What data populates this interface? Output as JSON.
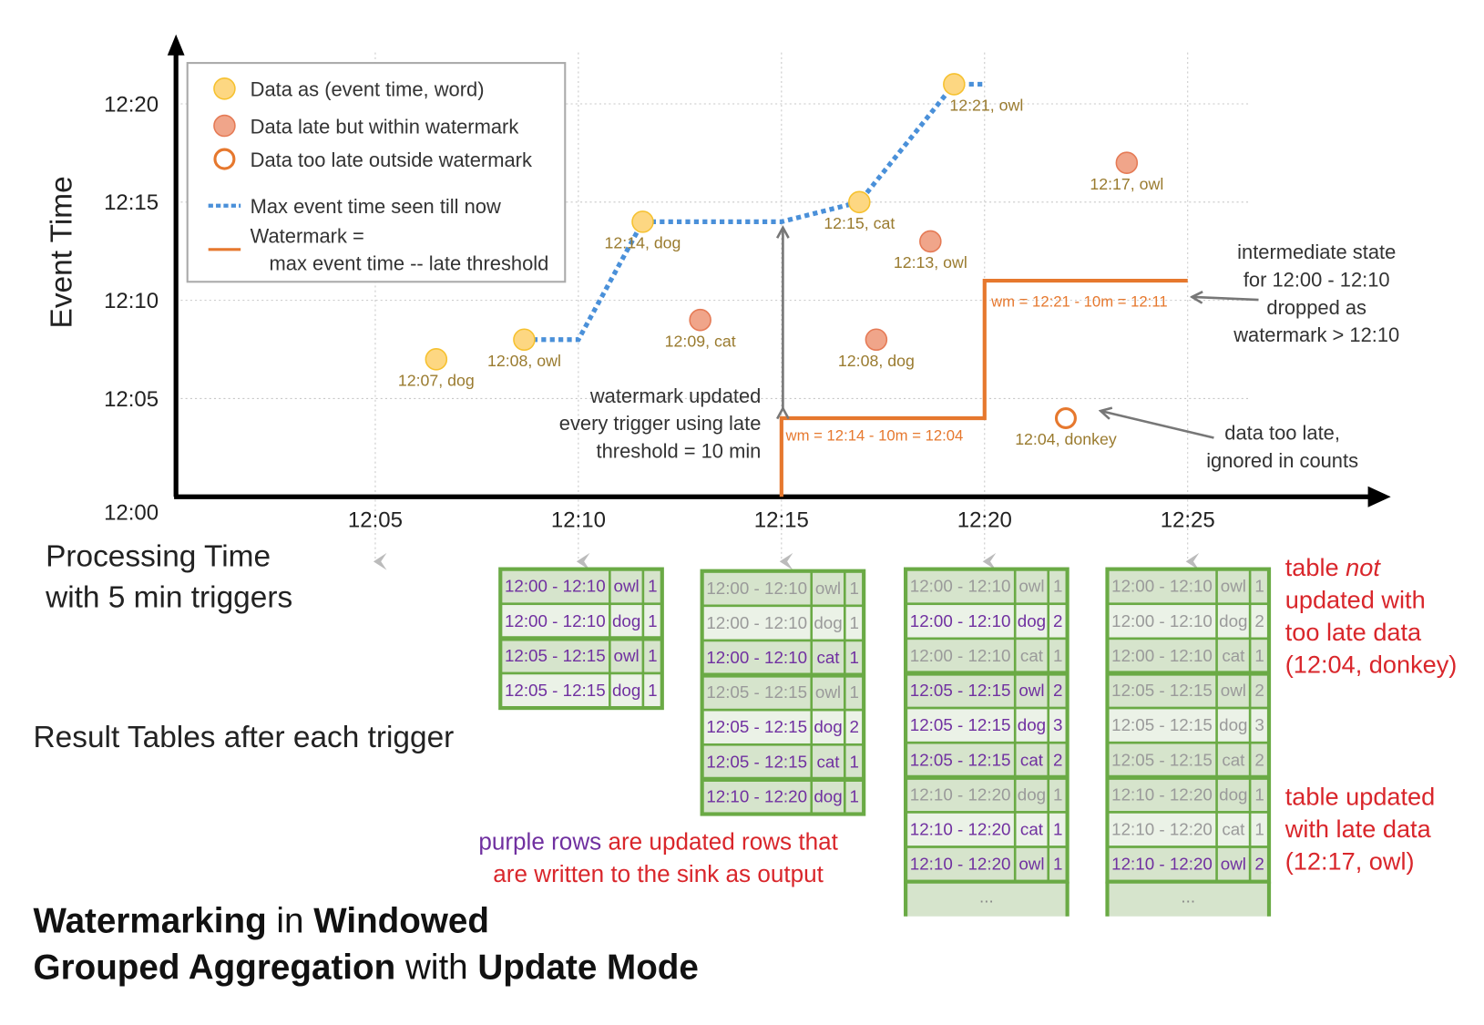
{
  "chart_data": {
    "type": "scatter",
    "ylabel": "Event Time",
    "xlabel_lines": [
      "Processing Time",
      "with 5 min triggers"
    ],
    "x_ticks": [
      "12:05",
      "12:10",
      "12:15",
      "12:20",
      "12:25"
    ],
    "y_ticks": [
      "12:00",
      "12:05",
      "12:10",
      "12:15",
      "12:20"
    ],
    "grid": true,
    "legend": {
      "placement": "top-left",
      "items": [
        {
          "kind": "on-time",
          "label": "Data as (event time, word)"
        },
        {
          "kind": "late",
          "label": "Data late but within watermark"
        },
        {
          "kind": "too-late",
          "label": "Data too late outside watermark"
        },
        {
          "kind": "max-line",
          "label": "Max event time seen till now"
        },
        {
          "kind": "watermark",
          "label": "Watermark =",
          "label2": "max event time -- late threshold"
        }
      ]
    },
    "colors": {
      "on_time_fill": "#fdd782",
      "on_time_stroke": "#f6c12f",
      "late_fill": "#f0a58a",
      "late_stroke": "#e57a55",
      "too_late_stroke": "#e6782e",
      "max_line": "#4a90d9",
      "watermark_line": "#e6782e",
      "updated_text": "#7030a0",
      "unchanged_text": "#9a9a9a",
      "table_border": "#6aaa45",
      "row_dark": "#d6e4cc",
      "row_light": "#ebf2e7",
      "note_red": "#d9262b"
    },
    "points": [
      {
        "processing_time": "12:06:30",
        "event_time": "12:07",
        "label": "12:07, dog",
        "kind": "on-time"
      },
      {
        "processing_time": "12:08:40",
        "event_time": "12:08",
        "label": "12:08, owl",
        "kind": "on-time"
      },
      {
        "processing_time": "12:11:35",
        "event_time": "12:14",
        "label": "12:14, dog",
        "kind": "on-time"
      },
      {
        "processing_time": "12:13:00",
        "event_time": "12:09",
        "label": "12:09, cat",
        "kind": "late"
      },
      {
        "processing_time": "12:16:55",
        "event_time": "12:15",
        "label": "12:15, cat",
        "kind": "on-time"
      },
      {
        "processing_time": "12:17:20",
        "event_time": "12:08",
        "label": "12:08, dog",
        "kind": "late"
      },
      {
        "processing_time": "12:18:40",
        "event_time": "12:13",
        "label": "12:13, owl",
        "kind": "late"
      },
      {
        "processing_time": "12:19:15",
        "event_time": "12:21",
        "label": "12:21, owl",
        "kind": "on-time"
      },
      {
        "processing_time": "12:22:00",
        "event_time": "12:04",
        "label": "12:04, donkey",
        "kind": "too-late"
      },
      {
        "processing_time": "12:23:30",
        "event_time": "12:17",
        "label": "12:17, owl",
        "kind": "late"
      }
    ],
    "max_event_time_line": [
      [
        "12:08:40",
        "12:08"
      ],
      [
        "12:10:00",
        "12:08"
      ],
      [
        "12:11:35",
        "12:14"
      ],
      [
        "12:15:00",
        "12:14"
      ],
      [
        "12:16:55",
        "12:15"
      ],
      [
        "12:19:15",
        "12:21"
      ],
      [
        "12:20:00",
        "12:21"
      ]
    ],
    "watermark_line": [
      [
        "12:15:00",
        "12:00"
      ],
      [
        "12:15:00",
        "12:04"
      ],
      [
        "12:20:00",
        "12:04"
      ],
      [
        "12:20:00",
        "12:11"
      ],
      [
        "12:25:00",
        "12:11"
      ]
    ],
    "watermark_labels": [
      "wm = 12:14 - 10m = 12:04",
      "wm = 12:21 - 10m = 12:11"
    ],
    "annotations": {
      "watermark_updated": [
        "watermark updated",
        "every trigger using late",
        "threshold = 10 min"
      ],
      "intermediate_state": [
        "intermediate state",
        "for 12:00 - 12:10",
        "dropped as",
        "watermark > 12:10"
      ],
      "too_late": [
        "data too late,",
        "ignored in counts"
      ]
    }
  },
  "result_tables_label": "Result Tables after each trigger",
  "tables": [
    {
      "trigger": "12:10",
      "ellipsis": false,
      "rows": [
        {
          "window": "12:00 - 12:10",
          "word": "owl",
          "count": "1",
          "updated": true
        },
        {
          "window": "12:00 - 12:10",
          "word": "dog",
          "count": "1",
          "updated": true
        },
        {
          "window": "12:05 - 12:15",
          "word": "owl",
          "count": "1",
          "updated": true
        },
        {
          "window": "12:05 - 12:15",
          "word": "dog",
          "count": "1",
          "updated": true
        }
      ]
    },
    {
      "trigger": "12:15",
      "ellipsis": false,
      "rows": [
        {
          "window": "12:00 - 12:10",
          "word": "owl",
          "count": "1",
          "updated": false
        },
        {
          "window": "12:00 - 12:10",
          "word": "dog",
          "count": "1",
          "updated": false
        },
        {
          "window": "12:00 - 12:10",
          "word": "cat",
          "count": "1",
          "updated": true
        },
        {
          "window": "12:05 - 12:15",
          "word": "owl",
          "count": "1",
          "updated": false
        },
        {
          "window": "12:05 - 12:15",
          "word": "dog",
          "count": "2",
          "updated": true
        },
        {
          "window": "12:05 - 12:15",
          "word": "cat",
          "count": "1",
          "updated": true
        },
        {
          "window": "12:10 - 12:20",
          "word": "dog",
          "count": "1",
          "updated": true
        }
      ]
    },
    {
      "trigger": "12:20",
      "ellipsis": true,
      "rows": [
        {
          "window": "12:00 - 12:10",
          "word": "owl",
          "count": "1",
          "updated": false
        },
        {
          "window": "12:00 - 12:10",
          "word": "dog",
          "count": "2",
          "updated": true
        },
        {
          "window": "12:00 - 12:10",
          "word": "cat",
          "count": "1",
          "updated": false
        },
        {
          "window": "12:05 - 12:15",
          "word": "owl",
          "count": "2",
          "updated": true
        },
        {
          "window": "12:05 - 12:15",
          "word": "dog",
          "count": "3",
          "updated": true
        },
        {
          "window": "12:05 - 12:15",
          "word": "cat",
          "count": "2",
          "updated": true
        },
        {
          "window": "12:10 - 12:20",
          "word": "dog",
          "count": "1",
          "updated": false
        },
        {
          "window": "12:10 - 12:20",
          "word": "cat",
          "count": "1",
          "updated": true
        },
        {
          "window": "12:10 - 12:20",
          "word": "owl",
          "count": "1",
          "updated": true
        }
      ]
    },
    {
      "trigger": "12:25",
      "ellipsis": true,
      "rows": [
        {
          "window": "12:00 - 12:10",
          "word": "owl",
          "count": "1",
          "updated": false
        },
        {
          "window": "12:00 - 12:10",
          "word": "dog",
          "count": "2",
          "updated": false
        },
        {
          "window": "12:00 - 12:10",
          "word": "cat",
          "count": "1",
          "updated": false
        },
        {
          "window": "12:05 - 12:15",
          "word": "owl",
          "count": "2",
          "updated": false
        },
        {
          "window": "12:05 - 12:15",
          "word": "dog",
          "count": "3",
          "updated": false
        },
        {
          "window": "12:05 - 12:15",
          "word": "cat",
          "count": "2",
          "updated": false
        },
        {
          "window": "12:10 - 12:20",
          "word": "dog",
          "count": "1",
          "updated": false
        },
        {
          "window": "12:10 - 12:20",
          "word": "cat",
          "count": "1",
          "updated": false
        },
        {
          "window": "12:10 - 12:20",
          "word": "owl",
          "count": "2",
          "updated": true
        }
      ]
    }
  ],
  "ellipsis_text": "...",
  "caption": {
    "purple": "purple rows",
    "red1": " are updated rows that",
    "red2": "are written to the sink as output"
  },
  "notes": {
    "not_updated": {
      "l1a": "table ",
      "l1b": "not",
      "l2": "updated with",
      "l3": "too late data",
      "l4": "(12:04, donkey)"
    },
    "updated": [
      "table updated",
      "with late data",
      "(12:17, owl)"
    ]
  },
  "title": {
    "line1": [
      {
        "text": "Watermarking",
        "strong": true
      },
      {
        "text": " in ",
        "strong": false
      },
      {
        "text": "Windowed",
        "strong": true
      }
    ],
    "line2": [
      {
        "text": "Grouped Aggregation",
        "strong": true
      },
      {
        "text": " with ",
        "strong": false
      },
      {
        "text": "Update Mode",
        "strong": true
      }
    ]
  }
}
